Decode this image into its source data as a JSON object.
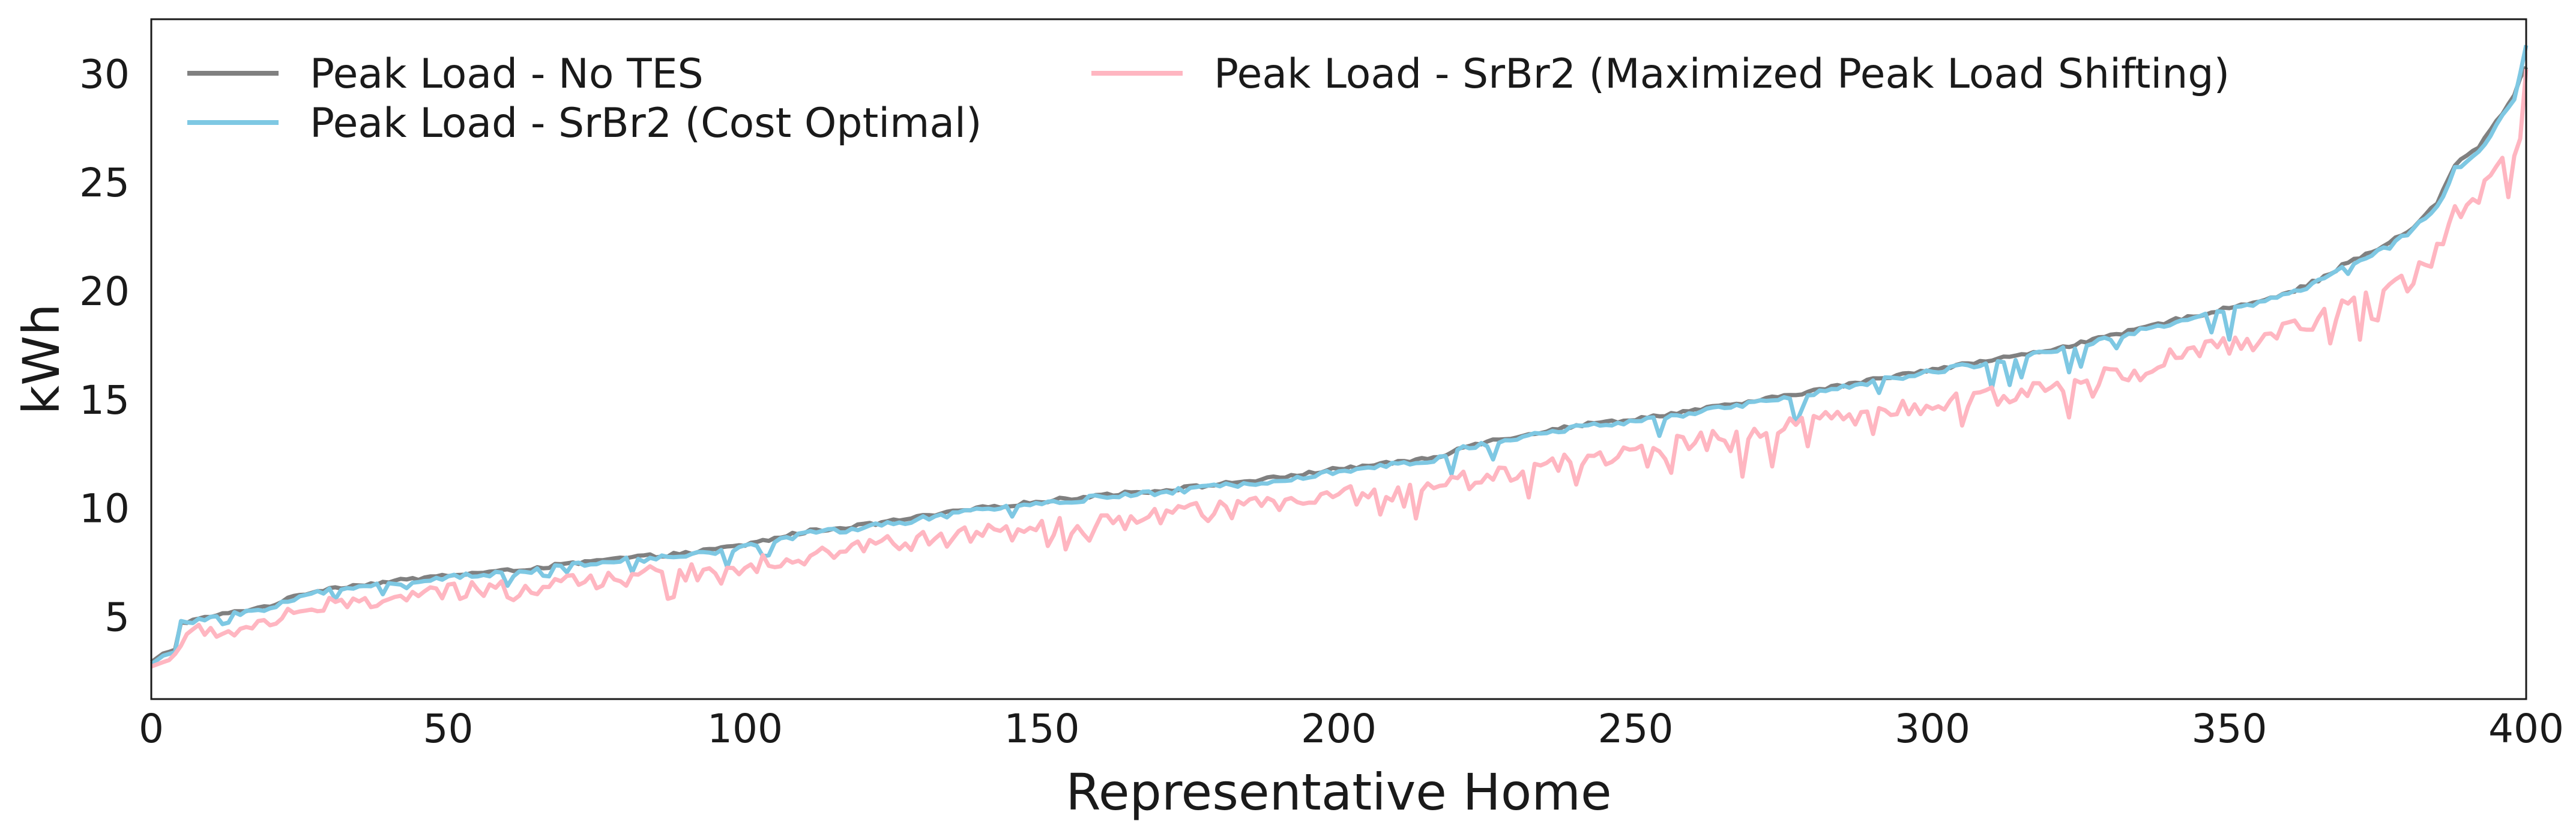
{
  "chart_data": {
    "type": "line",
    "xlabel": "Representative Home",
    "ylabel": "kWh",
    "xlim": [
      0,
      400
    ],
    "ylim": [
      1.2,
      32.5
    ],
    "xticks": [
      0,
      50,
      100,
      150,
      200,
      250,
      300,
      350,
      400
    ],
    "yticks": [
      5,
      10,
      15,
      20,
      25,
      30
    ],
    "grid": false,
    "legend_placement": "top-left, two columns",
    "series": [
      {
        "name": "Peak Load - No TES",
        "color": "#808080",
        "control_points": [
          [
            0,
            2.9
          ],
          [
            2,
            3.3
          ],
          [
            4,
            3.5
          ],
          [
            5,
            4.7
          ],
          [
            10,
            5.0
          ],
          [
            20,
            5.5
          ],
          [
            25,
            6.0
          ],
          [
            30,
            6.3
          ],
          [
            40,
            6.6
          ],
          [
            50,
            6.9
          ],
          [
            60,
            7.1
          ],
          [
            70,
            7.4
          ],
          [
            80,
            7.7
          ],
          [
            90,
            7.9
          ],
          [
            100,
            8.3
          ],
          [
            110,
            8.9
          ],
          [
            120,
            9.2
          ],
          [
            130,
            9.6
          ],
          [
            140,
            10.0
          ],
          [
            150,
            10.3
          ],
          [
            160,
            10.6
          ],
          [
            170,
            10.8
          ],
          [
            180,
            11.1
          ],
          [
            190,
            11.4
          ],
          [
            200,
            11.8
          ],
          [
            210,
            12.1
          ],
          [
            218,
            12.4
          ],
          [
            220,
            12.8
          ],
          [
            230,
            13.3
          ],
          [
            240,
            13.8
          ],
          [
            250,
            14.1
          ],
          [
            260,
            14.5
          ],
          [
            270,
            14.9
          ],
          [
            280,
            15.4
          ],
          [
            290,
            15.9
          ],
          [
            300,
            16.4
          ],
          [
            310,
            16.8
          ],
          [
            320,
            17.3
          ],
          [
            330,
            17.9
          ],
          [
            340,
            18.6
          ],
          [
            350,
            19.2
          ],
          [
            360,
            19.9
          ],
          [
            365,
            20.5
          ],
          [
            370,
            21.3
          ],
          [
            375,
            21.9
          ],
          [
            380,
            22.7
          ],
          [
            385,
            24.0
          ],
          [
            388,
            25.8
          ],
          [
            392,
            26.6
          ],
          [
            395,
            27.8
          ],
          [
            398,
            29.0
          ],
          [
            399,
            29.8
          ],
          [
            400,
            30.3
          ]
        ]
      },
      {
        "name": "Peak Load - SrBr2 (Cost Optimal)",
        "color": "#7ec8e3",
        "control_points": [
          [
            0,
            2.8
          ],
          [
            2,
            3.2
          ],
          [
            4,
            3.4
          ],
          [
            5,
            4.7
          ],
          [
            10,
            4.9
          ],
          [
            20,
            5.4
          ],
          [
            25,
            5.9
          ],
          [
            30,
            6.2
          ],
          [
            40,
            6.5
          ],
          [
            50,
            6.8
          ],
          [
            60,
            7.0
          ],
          [
            70,
            7.3
          ],
          [
            80,
            7.6
          ],
          [
            90,
            7.8
          ],
          [
            100,
            8.2
          ],
          [
            110,
            8.8
          ],
          [
            120,
            9.1
          ],
          [
            130,
            9.5
          ],
          [
            140,
            9.9
          ],
          [
            150,
            10.2
          ],
          [
            160,
            10.5
          ],
          [
            170,
            10.7
          ],
          [
            180,
            11.0
          ],
          [
            190,
            11.3
          ],
          [
            200,
            11.7
          ],
          [
            210,
            12.0
          ],
          [
            218,
            12.3
          ],
          [
            220,
            12.7
          ],
          [
            230,
            13.2
          ],
          [
            240,
            13.7
          ],
          [
            250,
            14.0
          ],
          [
            260,
            14.4
          ],
          [
            270,
            14.8
          ],
          [
            280,
            15.3
          ],
          [
            290,
            15.8
          ],
          [
            300,
            16.3
          ],
          [
            310,
            16.7
          ],
          [
            320,
            17.2
          ],
          [
            330,
            17.8
          ],
          [
            340,
            18.5
          ],
          [
            350,
            19.1
          ],
          [
            360,
            19.8
          ],
          [
            365,
            20.4
          ],
          [
            370,
            21.2
          ],
          [
            375,
            21.8
          ],
          [
            380,
            22.6
          ],
          [
            385,
            23.8
          ],
          [
            388,
            25.6
          ],
          [
            392,
            26.4
          ],
          [
            395,
            27.6
          ],
          [
            398,
            28.8
          ],
          [
            399,
            30.0
          ],
          [
            400,
            31.3
          ]
        ]
      },
      {
        "name": "Peak Load - SrBr2 (Maximized Peak Load Shifting)",
        "color": "#ffb6c1",
        "control_points": [
          [
            0,
            2.7
          ],
          [
            3,
            3.0
          ],
          [
            5,
            3.8
          ],
          [
            8,
            4.3
          ],
          [
            15,
            4.4
          ],
          [
            20,
            4.8
          ],
          [
            25,
            5.4
          ],
          [
            30,
            5.5
          ],
          [
            40,
            5.8
          ],
          [
            50,
            6.1
          ],
          [
            60,
            6.3
          ],
          [
            70,
            6.6
          ],
          [
            80,
            6.8
          ],
          [
            90,
            7.0
          ],
          [
            100,
            7.4
          ],
          [
            110,
            7.8
          ],
          [
            120,
            8.2
          ],
          [
            130,
            8.5
          ],
          [
            140,
            8.8
          ],
          [
            150,
            9.0
          ],
          [
            160,
            9.3
          ],
          [
            170,
            9.6
          ],
          [
            180,
            9.9
          ],
          [
            190,
            10.2
          ],
          [
            200,
            10.5
          ],
          [
            210,
            10.8
          ],
          [
            220,
            11.2
          ],
          [
            230,
            11.7
          ],
          [
            240,
            12.2
          ],
          [
            250,
            12.6
          ],
          [
            260,
            13.0
          ],
          [
            270,
            13.5
          ],
          [
            280,
            13.9
          ],
          [
            290,
            14.3
          ],
          [
            300,
            14.7
          ],
          [
            310,
            15.1
          ],
          [
            320,
            15.6
          ],
          [
            330,
            16.2
          ],
          [
            340,
            16.9
          ],
          [
            350,
            17.5
          ],
          [
            360,
            18.2
          ],
          [
            365,
            18.7
          ],
          [
            370,
            19.3
          ],
          [
            375,
            19.9
          ],
          [
            380,
            20.5
          ],
          [
            385,
            21.8
          ],
          [
            388,
            23.6
          ],
          [
            392,
            24.4
          ],
          [
            395,
            25.6
          ],
          [
            398,
            26.2
          ],
          [
            399,
            27.0
          ],
          [
            400,
            30.2
          ]
        ]
      }
    ]
  }
}
